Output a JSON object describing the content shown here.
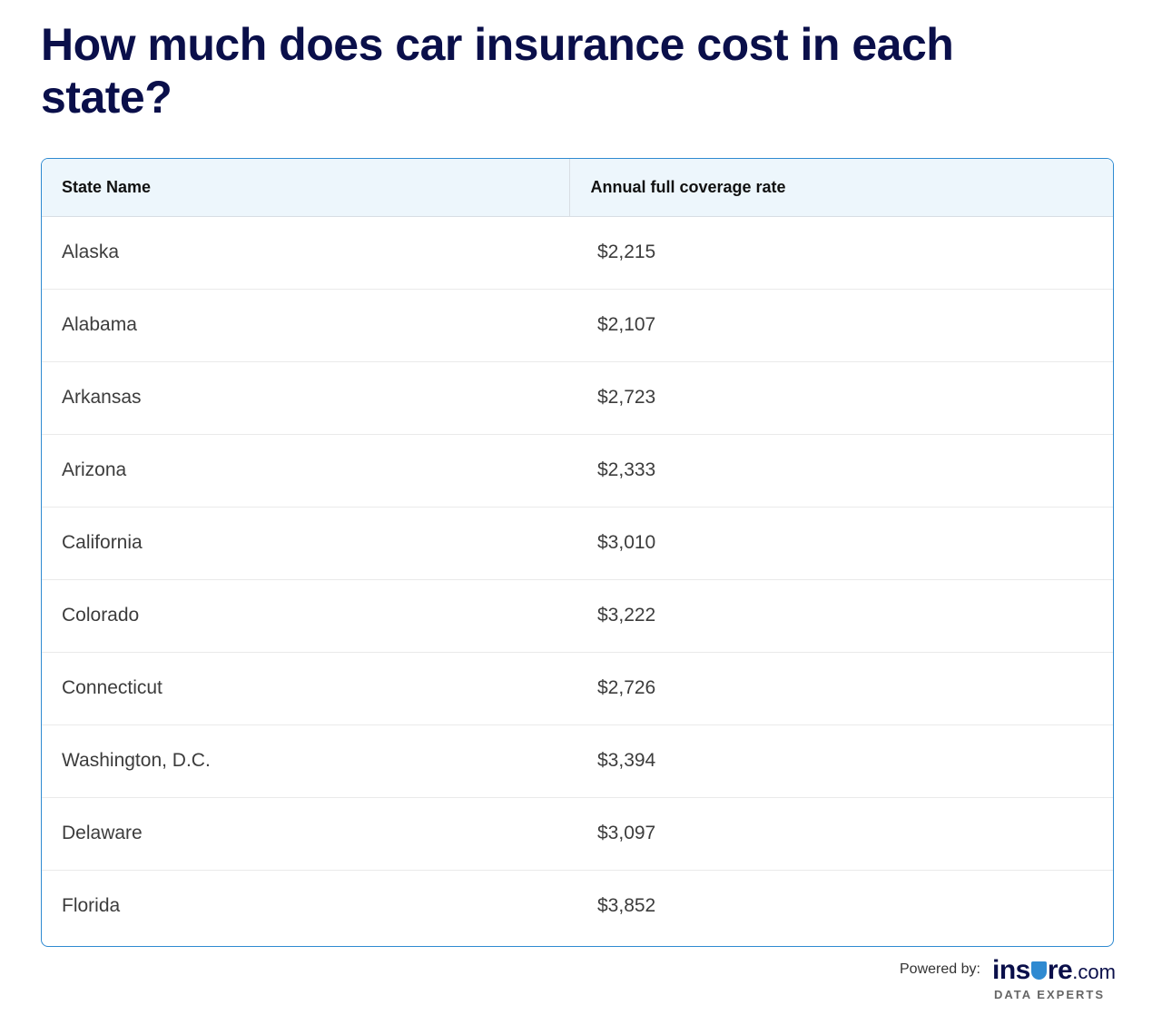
{
  "title": "How much does car insurance cost in each state?",
  "table": {
    "headers": {
      "state": "State Name",
      "rate": "Annual full coverage rate"
    },
    "rows": [
      {
        "state": "Alaska",
        "rate": "$2,215"
      },
      {
        "state": "Alabama",
        "rate": "$2,107"
      },
      {
        "state": "Arkansas",
        "rate": "$2,723"
      },
      {
        "state": "Arizona",
        "rate": "$2,333"
      },
      {
        "state": "California",
        "rate": "$3,010"
      },
      {
        "state": "Colorado",
        "rate": "$3,222"
      },
      {
        "state": "Connecticut",
        "rate": "$2,726"
      },
      {
        "state": "Washington, D.C.",
        "rate": "$3,394"
      },
      {
        "state": "Delaware",
        "rate": "$3,097"
      },
      {
        "state": "Florida",
        "rate": "$3,852"
      }
    ]
  },
  "footer": {
    "powered_by": "Powered by:",
    "logo_part1": "ins",
    "logo_part2": "re",
    "logo_suffix": ".com",
    "tagline": "DATA EXPERTS",
    "logo_icon": "shield-icon"
  },
  "colors": {
    "title": "#0a0f4a",
    "border_accent": "#2f8ad1",
    "header_bg": "#edf6fc"
  }
}
